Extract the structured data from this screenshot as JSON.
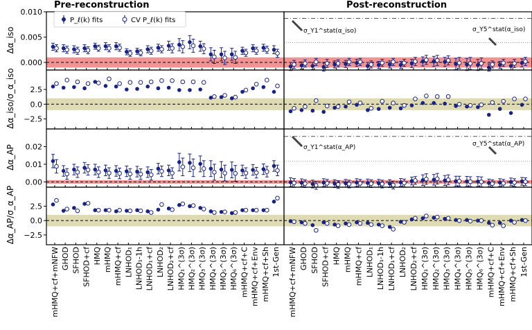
{
  "colors": {
    "marker": "#1a237e",
    "band_red": "#f08080",
    "band_olive": "#d8d3a6",
    "zero_line": "#000000",
    "ref_dash": "#555555",
    "ref_dot": "#999999"
  },
  "titles": {
    "left": "Pre-reconstruction",
    "right": "Post-reconstruction"
  },
  "legend": {
    "filled": "P_ℓ(k) fits",
    "open": "CV P_ℓ(k) fits"
  },
  "ylabels": [
    "Δα_iso",
    "Δα_iso/σ_α_iso",
    "Δα_AP",
    "Δα_AP/σ_α_AP"
  ],
  "annotations": {
    "iso_y1": "σ_Y1^stat(α_iso)",
    "iso_y5": "σ_Y5^stat(α_iso)",
    "ap_y1": "σ_Y1^stat(α_AP)",
    "ap_y5": "σ_Y5^stat(α_AP)"
  },
  "chart_data": {
    "type": "scatter",
    "categories": [
      "mHMQ+cf+mNFW",
      "GHOD",
      "SFHOD",
      "SFHOD+cf",
      "HMQ",
      "mHMQ",
      "mHMQ+cf",
      "LNHOD₁",
      "LNHOD₁-1h",
      "LNHOD₁+cf",
      "LNHOD₂",
      "LNHOD₂+cf",
      "HMQ₁^(3σ)",
      "HMQ₂^(3σ)",
      "HMQ₃^(3σ)",
      "HMQ₄^(3σ)",
      "HMQ₅^(3σ)",
      "HMQ₆^(3σ)",
      "mHMQ+cf+C",
      "mHMQ+cf+Env",
      "mHMQ+cf+Sh",
      "1st-Gen"
    ],
    "panels": [
      {
        "id": "iso-abs",
        "ylim": [
          -0.0015,
          0.01
        ],
        "yticks": [
          0.0,
          0.005,
          0.01
        ],
        "ytick_labels": [
          "0.000",
          "0.005",
          "0.010"
        ],
        "band": 0.001,
        "pre": {
          "filled": [
            0.0031,
            0.0028,
            0.0026,
            0.0028,
            0.0032,
            0.0032,
            0.0032,
            0.0021,
            0.0022,
            0.0026,
            0.0029,
            0.0033,
            0.0035,
            0.004,
            0.0032,
            0.0016,
            0.0016,
            0.0016,
            0.0023,
            0.0028,
            0.0029,
            0.0025
          ],
          "open": [
            0.0028,
            0.0025,
            0.0023,
            0.0024,
            0.0028,
            0.0028,
            0.0029,
            0.0018,
            0.0019,
            0.0023,
            0.0026,
            0.0028,
            0.0031,
            0.0033,
            0.0027,
            0.0011,
            0.0009,
            0.001,
            0.0019,
            0.0023,
            0.0025,
            0.0018
          ],
          "err": [
            0.0007,
            0.0007,
            0.0007,
            0.0007,
            0.0006,
            0.0007,
            0.0007,
            0.0006,
            0.0006,
            0.0007,
            0.0007,
            0.0009,
            0.0012,
            0.0013,
            0.001,
            0.0013,
            0.0013,
            0.0012,
            0.0007,
            0.0007,
            0.0007,
            0.0008
          ]
        },
        "post": {
          "filled": [
            -0.0008,
            -0.0006,
            -0.0007,
            -0.0009,
            -0.0004,
            -0.0003,
            -0.0001,
            -0.0007,
            -0.0005,
            -0.0004,
            -0.0005,
            -0.0002,
            0.0002,
            0.0002,
            0.0001,
            -0.0003,
            -0.0004,
            -0.0005,
            -0.001,
            -0.0005,
            -0.0007,
            -0.0001
          ],
          "open": [
            -0.0004,
            -0.0002,
            0.0001,
            -0.0002,
            -0.0002,
            0.0001,
            0.0001,
            -0.0004,
            -0.0001,
            0.0001,
            -0.0001,
            0.0002,
            0.0005,
            0.0004,
            0.0004,
            -0.0001,
            -0.0002,
            -0.0002,
            -0.0004,
            -0.0001,
            -0.0002,
            0.0002
          ],
          "err": [
            0.0008,
            0.0007,
            0.0007,
            0.0008,
            0.0007,
            0.0007,
            0.0007,
            0.0007,
            0.0007,
            0.0007,
            0.0007,
            0.0008,
            0.0009,
            0.001,
            0.0009,
            0.0011,
            0.0012,
            0.0011,
            0.0007,
            0.0007,
            0.0008,
            0.0008
          ]
        },
        "ref_dash": 0.0087,
        "ref_dot": 0.0039
      },
      {
        "id": "iso-sig",
        "ylim": [
          -4.2,
          5.8
        ],
        "yticks": [
          -2.5,
          0.0,
          2.5
        ],
        "ytick_labels": [
          "−2.5",
          "0.0",
          "2.5"
        ],
        "band": 1.0,
        "pre": {
          "filled": [
            3.0,
            2.8,
            2.9,
            2.7,
            3.8,
            3.1,
            3.0,
            2.5,
            2.6,
            3.0,
            2.7,
            2.8,
            2.4,
            2.4,
            2.5,
            1.1,
            1.2,
            1.0,
            2.1,
            2.7,
            2.9,
            2.1
          ],
          "open": [
            3.5,
            4.1,
            3.8,
            3.5,
            3.6,
            4.3,
            3.5,
            3.7,
            3.7,
            3.8,
            4.0,
            4.0,
            3.8,
            3.8,
            3.7,
            1.3,
            1.5,
            1.2,
            2.4,
            3.4,
            4.1,
            3.1
          ]
        },
        "post": {
          "filled": [
            -1.2,
            -1.0,
            -1.1,
            -1.3,
            -0.6,
            -0.4,
            -0.1,
            -1.0,
            -0.8,
            -0.6,
            -0.7,
            -0.2,
            0.2,
            0.2,
            0.1,
            -0.3,
            -0.4,
            -0.5,
            -1.8,
            -0.8,
            -1.5,
            -0.1
          ],
          "open": [
            -0.7,
            -0.4,
            0.6,
            -0.3,
            -0.4,
            0.4,
            0.2,
            -0.7,
            0.5,
            0.2,
            -0.2,
            0.9,
            1.4,
            1.3,
            1.3,
            0.0,
            -0.2,
            -0.1,
            0.3,
            0.5,
            0.9,
            0.9
          ]
        }
      },
      {
        "id": "ap-abs",
        "ylim": [
          -0.003,
          0.03
        ],
        "yticks": [
          0.0,
          0.01,
          0.02
        ],
        "ytick_labels": [
          "0.00",
          "0.01",
          "0.02"
        ],
        "band": 0.001,
        "pre": {
          "filled": [
            0.0118,
            0.0062,
            0.007,
            0.008,
            0.007,
            0.0065,
            0.0062,
            0.006,
            0.0058,
            0.0055,
            0.0075,
            0.0065,
            0.0112,
            0.0108,
            0.0102,
            0.0075,
            0.007,
            0.0068,
            0.0065,
            0.0068,
            0.0072,
            0.009
          ],
          "open": [
            0.0088,
            0.0045,
            0.0055,
            0.0068,
            0.0055,
            0.005,
            0.0048,
            0.0045,
            0.0044,
            0.004,
            0.006,
            0.005,
            0.0085,
            0.008,
            0.0075,
            0.0055,
            0.005,
            0.0048,
            0.005,
            0.0052,
            0.0058,
            0.0065
          ],
          "err": [
            0.0038,
            0.003,
            0.003,
            0.003,
            0.003,
            0.003,
            0.003,
            0.003,
            0.003,
            0.003,
            0.003,
            0.003,
            0.005,
            0.005,
            0.0045,
            0.0045,
            0.0045,
            0.0045,
            0.003,
            0.003,
            0.003,
            0.003
          ]
        },
        "post": {
          "filled": [
            -0.0002,
            -0.0005,
            -0.0012,
            -0.0004,
            -0.001,
            -0.0008,
            -0.0004,
            -0.0006,
            -0.0008,
            -0.001,
            -0.0003,
            0.0005,
            0.001,
            0.0012,
            0.0008,
            0.0004,
            0.0003,
            0.0002,
            -0.0006,
            -0.0004,
            0.0,
            0.0003
          ],
          "open": [
            -0.0006,
            -0.001,
            -0.002,
            -0.0008,
            -0.0015,
            -0.0012,
            -0.0008,
            -0.001,
            -0.0012,
            -0.0018,
            -0.0006,
            0.0008,
            0.0016,
            0.0018,
            0.0012,
            0.0004,
            0.0001,
            0.0,
            -0.001,
            -0.0008,
            -0.0004,
            0.0001
          ],
          "err": [
            0.0025,
            0.0022,
            0.0022,
            0.0022,
            0.0022,
            0.0022,
            0.0022,
            0.0022,
            0.0022,
            0.0022,
            0.0022,
            0.0022,
            0.003,
            0.003,
            0.0028,
            0.0028,
            0.0028,
            0.0028,
            0.0022,
            0.0022,
            0.0022,
            0.0022
          ]
        },
        "ref_dash": 0.0258,
        "ref_dot": 0.0118
      },
      {
        "id": "ap-sig",
        "ylim": [
          -4.2,
          5.8
        ],
        "yticks": [
          -2.5,
          0.0,
          2.5
        ],
        "ytick_labels": [
          "−2.5",
          "0.0",
          "2.5"
        ],
        "band": 1.0,
        "pre": {
          "filled": [
            2.8,
            1.7,
            2.2,
            2.9,
            1.8,
            1.8,
            1.6,
            1.7,
            1.8,
            1.6,
            1.9,
            2.1,
            2.7,
            2.5,
            2.2,
            1.6,
            1.5,
            1.3,
            1.8,
            1.8,
            1.8,
            3.3
          ],
          "open": [
            3.5,
            2.0,
            1.7,
            3.0,
            1.8,
            1.8,
            1.8,
            1.7,
            1.7,
            1.4,
            2.8,
            1.9,
            2.9,
            2.6,
            2.0,
            1.4,
            1.5,
            1.4,
            1.8,
            1.8,
            1.8,
            3.9
          ]
        },
        "post": {
          "filled": [
            -0.1,
            -0.3,
            -0.8,
            -0.3,
            -0.7,
            -0.5,
            -0.3,
            -0.4,
            -0.7,
            -1.1,
            -0.2,
            0.2,
            0.4,
            0.5,
            0.3,
            0.1,
            0.1,
            0.0,
            -0.4,
            -0.4,
            0.0,
            0.1
          ],
          "open": [
            -0.2,
            -0.5,
            -1.7,
            -0.5,
            -0.9,
            -0.7,
            -0.5,
            -0.7,
            -0.9,
            -1.5,
            -0.3,
            0.4,
            0.8,
            0.6,
            0.4,
            0.0,
            -0.1,
            0.0,
            -0.8,
            -0.9,
            -0.3,
            0.0
          ]
        }
      }
    ]
  }
}
